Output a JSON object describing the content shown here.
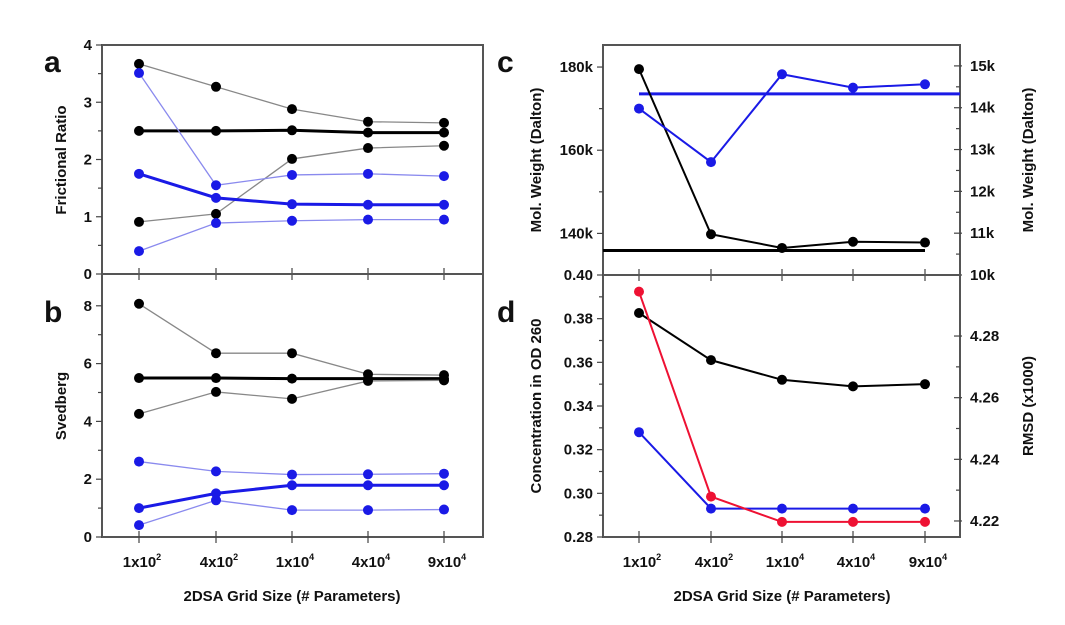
{
  "figure": {
    "x_categories": [
      "1x10^2",
      "4x10^2",
      "1x10^4",
      "4x10^4",
      "9x10^4"
    ],
    "x_label_parts": [
      [
        "1x10",
        "2"
      ],
      [
        "4x10",
        "2"
      ],
      [
        "1x10",
        "4"
      ],
      [
        "4x10",
        "4"
      ],
      [
        "9x10",
        "4"
      ]
    ],
    "xlabel": "2DSA Grid Size (# Parameters)",
    "colors": {
      "black": "#000000",
      "gray_line": "#888888",
      "blue": "#1a1ae6",
      "light_blue_line": "#8a8aee",
      "red": "#ee1133"
    }
  },
  "chart_data": [
    {
      "panel": "a",
      "type": "line",
      "ylabel": "Frictional Ratio",
      "ylim": [
        0,
        4
      ],
      "yticks": [
        0,
        1,
        2,
        3,
        4
      ],
      "categories": [
        "1x10^2",
        "4x10^2",
        "1x10^4",
        "4x10^4",
        "9x10^4"
      ],
      "series": [
        {
          "name": "black-upper",
          "color": "black",
          "weight": "thin",
          "values": [
            3.67,
            3.27,
            2.88,
            2.66,
            2.64
          ]
        },
        {
          "name": "black-mean",
          "color": "black",
          "weight": "thick",
          "values": [
            2.5,
            2.5,
            2.51,
            2.47,
            2.47
          ]
        },
        {
          "name": "black-lower",
          "color": "black",
          "weight": "thin",
          "values": [
            0.91,
            1.05,
            2.01,
            2.2,
            2.24
          ]
        },
        {
          "name": "blue-upper",
          "color": "blue",
          "weight": "thin",
          "values": [
            3.51,
            1.55,
            1.73,
            1.75,
            1.71
          ]
        },
        {
          "name": "blue-mean",
          "color": "blue",
          "weight": "thick",
          "values": [
            1.75,
            1.33,
            1.22,
            1.21,
            1.21
          ]
        },
        {
          "name": "blue-lower",
          "color": "blue",
          "weight": "thin",
          "values": [
            0.4,
            0.89,
            0.93,
            0.95,
            0.95
          ]
        }
      ]
    },
    {
      "panel": "b",
      "type": "line",
      "ylabel": "Svedberg",
      "ylim": [
        0,
        9.1
      ],
      "yticks": [
        0,
        2,
        4,
        6,
        8
      ],
      "xlabel": "2DSA Grid Size (# Parameters)",
      "categories": [
        "1x10^2",
        "4x10^2",
        "1x10^4",
        "4x10^4",
        "9x10^4"
      ],
      "series": [
        {
          "name": "black-upper",
          "color": "black",
          "weight": "thin",
          "values": [
            8.07,
            6.36,
            6.36,
            5.63,
            5.6
          ]
        },
        {
          "name": "black-mean",
          "color": "black",
          "weight": "thick",
          "values": [
            5.5,
            5.5,
            5.48,
            5.48,
            5.48
          ]
        },
        {
          "name": "black-lower",
          "color": "black",
          "weight": "thin",
          "values": [
            4.26,
            5.02,
            4.78,
            5.4,
            5.42
          ]
        },
        {
          "name": "blue-upper",
          "color": "blue",
          "weight": "thin",
          "values": [
            2.61,
            2.27,
            2.16,
            2.17,
            2.19
          ]
        },
        {
          "name": "blue-mean",
          "color": "blue",
          "weight": "thick",
          "values": [
            1.0,
            1.51,
            1.79,
            1.79,
            1.79
          ]
        },
        {
          "name": "blue-lower",
          "color": "blue",
          "weight": "thin",
          "values": [
            0.41,
            1.27,
            0.93,
            0.93,
            0.95
          ]
        }
      ]
    },
    {
      "panel": "c",
      "type": "line",
      "ylabel": "Mol. Weight (Dalton)",
      "ylabel_right": "Mol. Weight (Dalton)",
      "ylim": [
        130000,
        185300
      ],
      "ylim_right": [
        10000,
        15500
      ],
      "yticks": [
        140000,
        160000,
        180000
      ],
      "ytick_labels": [
        "140k",
        "160k",
        "180k"
      ],
      "yticks_right": [
        10000,
        11000,
        12000,
        13000,
        14000,
        15000
      ],
      "ytick_labels_right": [
        "10k",
        "11k",
        "12k",
        "13k",
        "14k",
        "15k"
      ],
      "categories": [
        "1x10^2",
        "4x10^2",
        "1x10^4",
        "4x10^4",
        "9x10^4"
      ],
      "series": [
        {
          "name": "black-mw",
          "color": "black",
          "axis": "left",
          "values": [
            179500,
            139800,
            136500,
            138000,
            137800
          ]
        },
        {
          "name": "blue-mw",
          "color": "blue",
          "axis": "right",
          "values": [
            13980,
            12700,
            14800,
            14480,
            14560
          ]
        }
      ],
      "reference_lines": [
        {
          "name": "black-reference",
          "color": "black",
          "axis": "left",
          "value": 135900
        },
        {
          "name": "blue-reference",
          "color": "blue",
          "axis": "right",
          "value": 14330
        }
      ]
    },
    {
      "panel": "d",
      "type": "line",
      "ylabel": "Concentration in OD 260",
      "ylabel_right": "RMSD (x1000)",
      "xlabel": "2DSA Grid Size (# Parameters)",
      "ylim": [
        0.28,
        0.4
      ],
      "ylim_right": [
        4.2148,
        4.2998
      ],
      "yticks": [
        0.28,
        0.3,
        0.32,
        0.34,
        0.36,
        0.38,
        0.4
      ],
      "ytick_labels": [
        "0.28",
        "0.30",
        "0.32",
        "0.34",
        "0.36",
        "0.38",
        "0.40"
      ],
      "yticks_right": [
        4.22,
        4.24,
        4.26,
        4.28
      ],
      "ytick_labels_right": [
        "4.22",
        "4.24",
        "4.26",
        "4.28"
      ],
      "categories": [
        "1x10^2",
        "4x10^2",
        "1x10^4",
        "4x10^4",
        "9x10^4"
      ],
      "series": [
        {
          "name": "black-concentration",
          "color": "black",
          "axis": "left",
          "values": [
            0.3826,
            0.361,
            0.352,
            0.349,
            0.35
          ]
        },
        {
          "name": "blue-concentration",
          "color": "blue",
          "axis": "left",
          "values": [
            0.328,
            0.293,
            0.293,
            0.293,
            0.293
          ]
        },
        {
          "name": "red-rmsd",
          "color": "red",
          "axis": "right",
          "values": [
            4.2944,
            4.2279,
            4.2197,
            4.2197,
            4.2197
          ]
        }
      ]
    }
  ]
}
